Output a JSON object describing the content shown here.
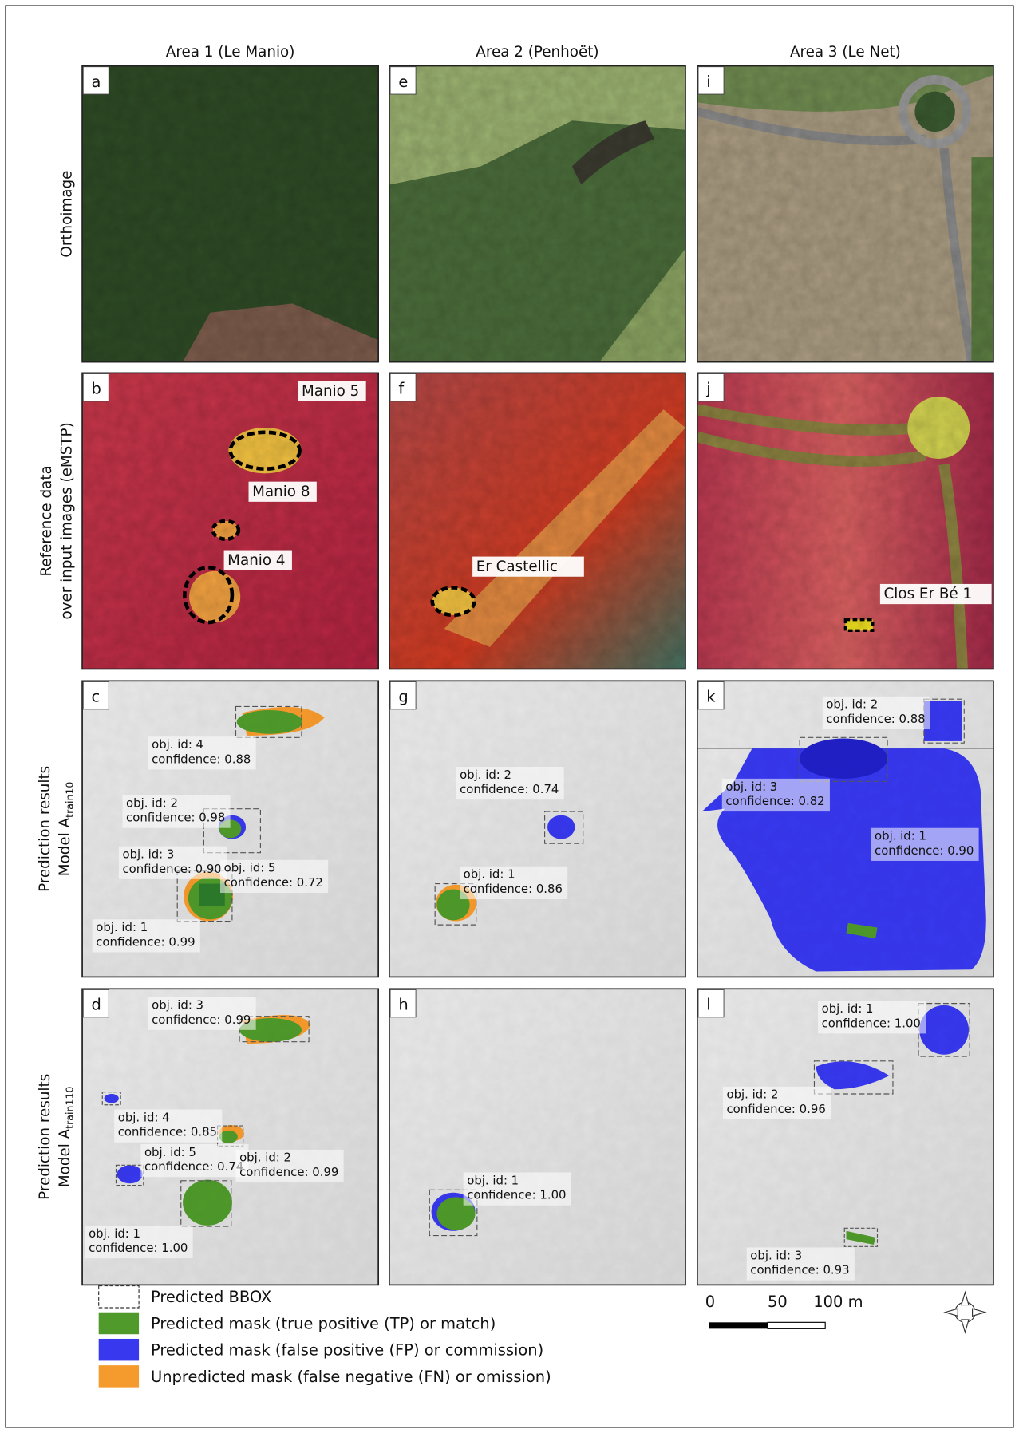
{
  "columns": [
    "Area 1 (Le Manio)",
    "Area 2 (Penhoët)",
    "Area 3 (Le Net)"
  ],
  "rows": [
    {
      "lines": [
        "Orthoimage"
      ]
    },
    {
      "lines": [
        "Reference data",
        "over input images (eMSTP)"
      ]
    },
    {
      "lines": [
        "Prediction results"
      ],
      "model": "Model A",
      "sub": "train10"
    },
    {
      "lines": [
        "Prediction results"
      ],
      "model": "Model A",
      "sub": "train110"
    }
  ],
  "panels": [
    {
      "letter": "a",
      "labels": []
    },
    {
      "letter": "b",
      "labels": [
        [
          "Manio 5"
        ],
        [
          "Manio 8"
        ],
        [
          "Manio 4"
        ]
      ]
    },
    {
      "letter": "c",
      "labels": [
        [
          "obj. id: 4",
          "confidence: 0.88"
        ],
        [
          "obj. id: 2",
          "confidence: 0.98"
        ],
        [
          "obj. id: 3",
          "confidence: 0.90"
        ],
        [
          "obj. id: 5",
          "confidence: 0.72"
        ],
        [
          "obj. id: 1",
          "confidence: 0.99"
        ]
      ]
    },
    {
      "letter": "d",
      "labels": [
        [
          "obj. id: 3",
          "confidence: 0.99"
        ],
        [
          "obj. id: 4",
          "confidence: 0.85"
        ],
        [
          "obj. id: 5",
          "confidence: 0.74"
        ],
        [
          "obj. id: 2",
          "confidence: 0.99"
        ],
        [
          "obj. id: 1",
          "confidence: 1.00"
        ]
      ]
    },
    {
      "letter": "e",
      "labels": []
    },
    {
      "letter": "f",
      "labels": [
        [
          "Er Castellic"
        ]
      ]
    },
    {
      "letter": "g",
      "labels": [
        [
          "obj. id: 2",
          "confidence: 0.74"
        ],
        [
          "obj. id: 1",
          "confidence: 0.86"
        ]
      ]
    },
    {
      "letter": "h",
      "labels": [
        [
          "obj. id: 1",
          "confidence: 1.00"
        ]
      ]
    },
    {
      "letter": "i",
      "labels": []
    },
    {
      "letter": "j",
      "labels": [
        [
          "Clos Er Bé 1"
        ]
      ]
    },
    {
      "letter": "k",
      "labels": [
        [
          "obj. id: 2",
          "confidence: 0.88"
        ],
        [
          "obj. id: 3",
          "confidence: 0.82"
        ],
        [
          "obj. id: 1",
          "confidence: 0.90"
        ]
      ]
    },
    {
      "letter": "l",
      "labels": [
        [
          "obj. id: 1",
          "confidence: 1.00"
        ],
        [
          "obj. id: 2",
          "confidence: 0.96"
        ],
        [
          "obj. id: 3",
          "confidence: 0.93"
        ]
      ]
    }
  ],
  "legend": [
    "Predicted BBOX",
    "Predicted mask (true positive (TP) or match)",
    "Predicted mask (false positive (FP) or commission)",
    "Unpredicted mask (false negative (FN) or omission)"
  ],
  "scale": [
    "0",
    "50",
    "100 m"
  ]
}
